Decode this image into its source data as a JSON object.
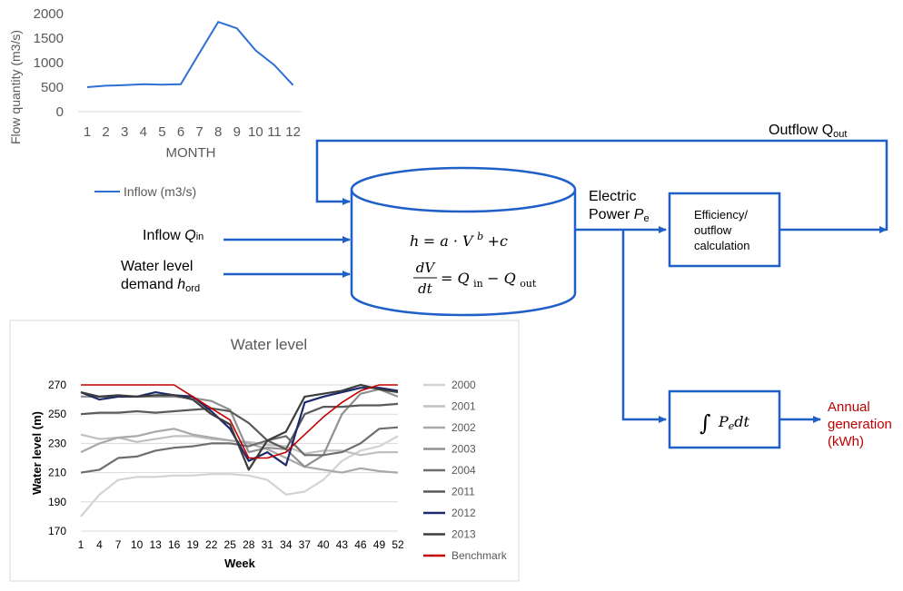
{
  "inflow_chart": {
    "ylabel": "Flow quantity (m3/s)",
    "xlabel": "MONTH",
    "yticks": [
      "2000",
      "1500",
      "1000",
      "500",
      "0"
    ],
    "xticks": [
      "1",
      "2",
      "3",
      "4",
      "5",
      "6",
      "7",
      "8",
      "9",
      "10",
      "11",
      "12"
    ],
    "legend": "Inflow (m3/s)"
  },
  "diagram": {
    "inflow_prefix": "Inflow ",
    "inflow_symbol": "Q",
    "inflow_sub": "in",
    "demand_line1": "Water level",
    "demand_line2": "demand ",
    "demand_symbol": "h",
    "demand_sub": "ord",
    "outflow_label": "Outflow Q",
    "outflow_sub": "out",
    "power_line1": "Electric",
    "power_line2": "Power ",
    "power_symbol": "P",
    "power_sub": "e",
    "eff_line1": "Efficiency/",
    "eff_line2": "outflow",
    "eff_line3": "calculation",
    "eq1_lhs": "h",
    "eq1_rhs": "= a · V",
    "eq1_exp": "b",
    "eq1_tail": " +c",
    "eq2_num": "dV",
    "eq2_den": "dt",
    "eq2_rhs": "= Q",
    "eq2_in": "in",
    "eq2_minus": " − Q",
    "eq2_out": "out",
    "integral_sign": "∫",
    "integral_p": "P",
    "integral_sub": "e",
    "integral_dt": "dt",
    "annual_line1": "Annual",
    "annual_line2": "generation",
    "annual_line3": "(kWh)",
    "arrow_color": "#1f5fc8",
    "annual_color": "#c00000"
  },
  "chart_data": [
    {
      "type": "line",
      "xlabel": "MONTH",
      "ylabel": "Flow quantity (m3/s)",
      "ylim": [
        0,
        2000
      ],
      "x": [
        1,
        2,
        3,
        4,
        5,
        6,
        7,
        8,
        9,
        10,
        11,
        12
      ],
      "series": [
        {
          "name": "Inflow (m3/s)",
          "color": "#2e6fd6",
          "values": [
            500,
            530,
            540,
            560,
            550,
            560,
            1200,
            1830,
            1700,
            1250,
            950,
            540
          ]
        }
      ]
    },
    {
      "type": "line",
      "title": "Water level",
      "xlabel": "Week",
      "ylabel": "Water level  (m)",
      "ylim": [
        170,
        275
      ],
      "yticks": [
        170,
        190,
        210,
        230,
        250,
        270
      ],
      "xticks": [
        1,
        4,
        7,
        10,
        13,
        16,
        19,
        22,
        25,
        28,
        31,
        34,
        37,
        40,
        43,
        46,
        49,
        52
      ],
      "x": [
        1,
        4,
        7,
        10,
        13,
        16,
        19,
        22,
        25,
        28,
        31,
        34,
        37,
        40,
        43,
        46,
        49,
        52
      ],
      "series": [
        {
          "name": "2000",
          "color": "#d3d3d3",
          "values": [
            180,
            195,
            205,
            207,
            207,
            208,
            208,
            209,
            209,
            208,
            205,
            195,
            197,
            205,
            218,
            225,
            228,
            235
          ]
        },
        {
          "name": "2001",
          "color": "#c0c0c0",
          "values": [
            236,
            233,
            234,
            231,
            233,
            235,
            235,
            233,
            232,
            231,
            229,
            228,
            223,
            225,
            225,
            222,
            224,
            224
          ]
        },
        {
          "name": "2002",
          "color": "#a9a9a9",
          "values": [
            224,
            230,
            234,
            235,
            238,
            240,
            236,
            234,
            232,
            230,
            226,
            220,
            214,
            212,
            210,
            213,
            211,
            210
          ]
        },
        {
          "name": "2003",
          "color": "#909090",
          "values": [
            262,
            262,
            262,
            262,
            262,
            262,
            261,
            259,
            253,
            224,
            227,
            226,
            214,
            222,
            250,
            264,
            267,
            262
          ]
        },
        {
          "name": "2004",
          "color": "#6e6e6e",
          "values": [
            210,
            212,
            220,
            221,
            225,
            227,
            228,
            230,
            230,
            228,
            232,
            235,
            222,
            222,
            224,
            230,
            240,
            241
          ]
        },
        {
          "name": "2011",
          "color": "#5a5a5a",
          "values": [
            250,
            251,
            251,
            252,
            251,
            252,
            253,
            254,
            252,
            244,
            232,
            226,
            250,
            255,
            255,
            256,
            256,
            257
          ]
        },
        {
          "name": "2012",
          "color": "#1c2a6b",
          "values": [
            265,
            260,
            262,
            262,
            265,
            263,
            262,
            252,
            240,
            218,
            224,
            215,
            258,
            262,
            265,
            268,
            268,
            266
          ]
        },
        {
          "name": "2013",
          "color": "#3c3c3c",
          "values": [
            265,
            262,
            263,
            262,
            263,
            263,
            260,
            250,
            243,
            212,
            232,
            238,
            262,
            264,
            266,
            270,
            267,
            265
          ]
        },
        {
          "name": "Benchmark",
          "color": "#c00000",
          "values": [
            270,
            270,
            270,
            270,
            270,
            270,
            262,
            254,
            246,
            220,
            220,
            224,
            236,
            248,
            258,
            266,
            270,
            270
          ]
        }
      ]
    }
  ]
}
